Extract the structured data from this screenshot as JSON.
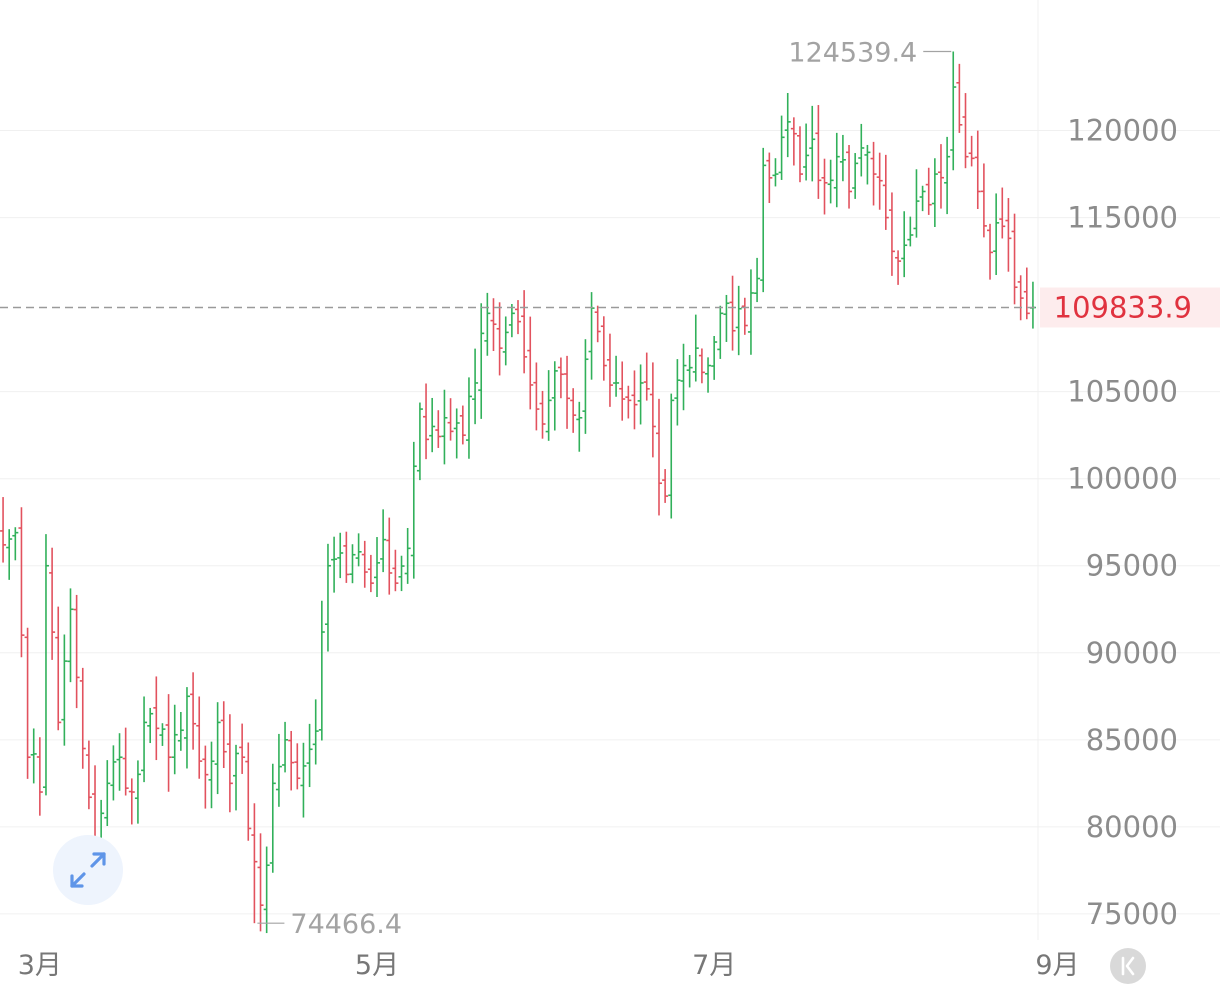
{
  "chart_data": {
    "type": "ohlc",
    "colors": {
      "up": "#31b05a",
      "down": "#e2525e",
      "grid": "#f0f0f0",
      "axis_text": "#8c8c8c",
      "price_line": "#9a9a9a",
      "price_label_bg": "#fdeced",
      "price_text": "#e0323f",
      "annotation_text": "#a3a3a3",
      "expand_icon_bg": "#eef4fd",
      "expand_icon": "#5f95e8",
      "collapse_icon_bg": "#d9d9d9"
    },
    "y_axis": {
      "ylim": [
        73500,
        127500
      ],
      "ticks": [
        {
          "value": 75000,
          "label": "75000"
        },
        {
          "value": 80000,
          "label": "80000"
        },
        {
          "value": 85000,
          "label": "85000"
        },
        {
          "value": 90000,
          "label": "90000"
        },
        {
          "value": 95000,
          "label": "95000"
        },
        {
          "value": 100000,
          "label": "100000"
        },
        {
          "value": 105000,
          "label": "105000"
        },
        {
          "value": 115000,
          "label": "115000"
        },
        {
          "value": 120000,
          "label": "120000"
        }
      ]
    },
    "x_axis": {
      "xlim": [
        -0.5,
        168.5
      ],
      "ticks": [
        {
          "index": 6,
          "label": "3月"
        },
        {
          "index": 61,
          "label": "5月"
        },
        {
          "index": 116,
          "label": "7月"
        },
        {
          "index": 172,
          "label": "9月"
        }
      ]
    },
    "current_price": {
      "value": 109833.9,
      "label": "109833.9"
    },
    "annotations": {
      "high": {
        "index": 155,
        "value": 124539.4,
        "label": "124539.4"
      },
      "low": {
        "index": 41,
        "value": 74466.4,
        "label": "74466.4"
      }
    },
    "anchors": [
      [
        0,
        96200
      ],
      [
        2,
        96900
      ],
      [
        4,
        84000
      ],
      [
        6,
        82000
      ],
      [
        7,
        95000
      ],
      [
        9,
        86000
      ],
      [
        11,
        92500
      ],
      [
        13,
        84500
      ],
      [
        15,
        78500
      ],
      [
        17,
        82500
      ],
      [
        19,
        84000
      ],
      [
        21,
        82000
      ],
      [
        24,
        86500
      ],
      [
        27,
        84000
      ],
      [
        30,
        87500
      ],
      [
        33,
        83000
      ],
      [
        35,
        86000
      ],
      [
        37,
        82500
      ],
      [
        39,
        84000
      ],
      [
        41,
        78000
      ],
      [
        42,
        75500
      ],
      [
        44,
        82500
      ],
      [
        46,
        85000
      ],
      [
        49,
        83500
      ],
      [
        51,
        85500
      ],
      [
        53,
        95000
      ],
      [
        56,
        94500
      ],
      [
        58,
        95800
      ],
      [
        60,
        94000
      ],
      [
        62,
        96500
      ],
      [
        64,
        94000
      ],
      [
        66,
        96000
      ],
      [
        68,
        104000
      ],
      [
        70,
        103000
      ],
      [
        72,
        103500
      ],
      [
        75,
        102500
      ],
      [
        77,
        105500
      ],
      [
        79,
        109500
      ],
      [
        81,
        107500
      ],
      [
        83,
        109500
      ],
      [
        85,
        107000
      ],
      [
        87,
        104000
      ],
      [
        89,
        104500
      ],
      [
        91,
        106000
      ],
      [
        94,
        103500
      ],
      [
        96,
        109800
      ],
      [
        98,
        106500
      ],
      [
        100,
        105500
      ],
      [
        102,
        104500
      ],
      [
        104,
        105500
      ],
      [
        106,
        103000
      ],
      [
        108,
        99000
      ],
      [
        109,
        104500
      ],
      [
        111,
        106500
      ],
      [
        113,
        107500
      ],
      [
        115,
        106500
      ],
      [
        117,
        109500
      ],
      [
        119,
        108500
      ],
      [
        121,
        108800
      ],
      [
        123,
        111500
      ],
      [
        124,
        118000
      ],
      [
        126,
        117500
      ],
      [
        128,
        120500
      ],
      [
        130,
        117500
      ],
      [
        132,
        119500
      ],
      [
        134,
        117000
      ],
      [
        136,
        118500
      ],
      [
        138,
        116500
      ],
      [
        140,
        119000
      ],
      [
        142,
        117500
      ],
      [
        144,
        115000
      ],
      [
        146,
        112500
      ],
      [
        148,
        114000
      ],
      [
        150,
        116500
      ],
      [
        152,
        117500
      ],
      [
        154,
        118500
      ],
      [
        155,
        122500
      ],
      [
        157,
        118500
      ],
      [
        159,
        116500
      ],
      [
        161,
        113000
      ],
      [
        163,
        114500
      ],
      [
        165,
        111000
      ],
      [
        167,
        109500
      ],
      [
        168,
        109833.9
      ]
    ],
    "candle_count": 169,
    "seed": 20250829
  }
}
